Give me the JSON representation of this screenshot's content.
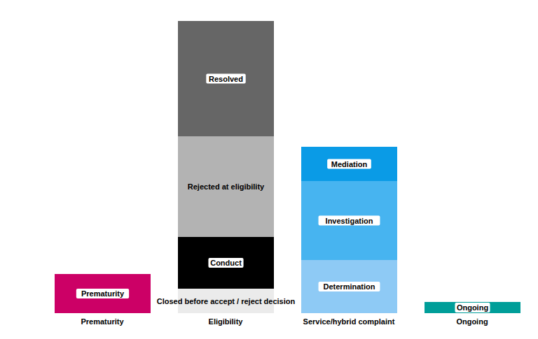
{
  "chart_data": {
    "type": "bar",
    "stacked": true,
    "grid": false,
    "tick_labels": "x",
    "categories": [
      "Prematurity",
      "Eligibility",
      "Service/hybrid complaint",
      "Ongoing"
    ],
    "ylim": [
      0,
      41.8
    ],
    "series": [
      {
        "name": "Prematurity",
        "color": "#cc0066",
        "values": [
          5.6,
          null,
          null,
          null
        ]
      },
      {
        "name": "Closed before accept / reject decision",
        "color": "#ebebeb",
        "values": [
          null,
          3.5,
          null,
          null
        ]
      },
      {
        "name": "Conduct",
        "color": "#000000",
        "values": [
          null,
          7.4,
          null,
          null
        ]
      },
      {
        "name": "Rejected at eligibility",
        "color": "#b3b3b3",
        "values": [
          null,
          14.4,
          null,
          null
        ]
      },
      {
        "name": "Resolved",
        "color": "#666666",
        "values": [
          null,
          16.5,
          null,
          null
        ]
      },
      {
        "name": "Determination",
        "color": "#8ecaf5",
        "values": [
          null,
          null,
          7.6,
          null
        ]
      },
      {
        "name": "Investigation",
        "color": "#47b4f0",
        "values": [
          null,
          null,
          11.3,
          null
        ]
      },
      {
        "name": "Mediation",
        "color": "#0a9be6",
        "values": [
          null,
          null,
          4.9,
          null
        ]
      },
      {
        "name": "Ongoing",
        "color": "#009e99",
        "values": [
          null,
          null,
          null,
          1.6
        ]
      }
    ]
  }
}
